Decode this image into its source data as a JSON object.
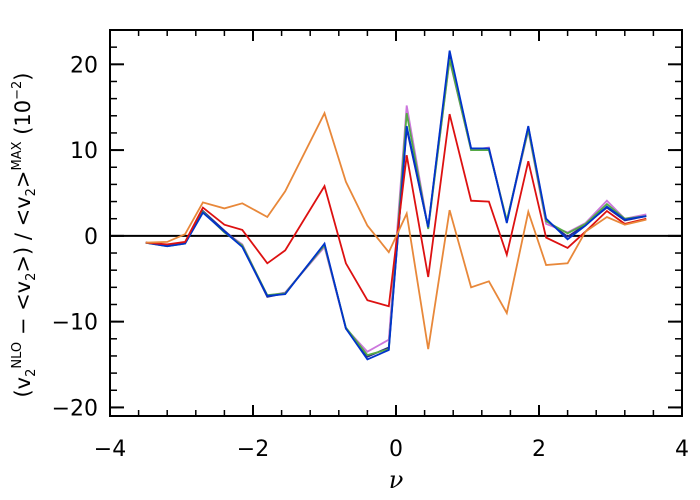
{
  "chart_data": {
    "type": "line",
    "title": "",
    "xlabel": "ν",
    "ylabel_parts": {
      "open": "(v",
      "sub1": "2",
      "sup1": "NLO",
      "middle": " − <v",
      "sub2": "2",
      "middle2": ">) / <v",
      "sub3": "2",
      "close": ">",
      "sup2": "MAX",
      "unit": " (10",
      "unit_exp": "−2",
      "unit_close": ")"
    },
    "xlim": [
      -4,
      4
    ],
    "ylim": [
      -21,
      24
    ],
    "xticks": [
      -4,
      -2,
      0,
      2,
      4
    ],
    "xtick_labels": [
      "−4",
      "−2",
      "0",
      "2",
      "4"
    ],
    "yticks": [
      -20,
      -10,
      0,
      10,
      20
    ],
    "ytick_labels": [
      "−20",
      "−10",
      "0",
      "10",
      "20"
    ],
    "x_minor_step": 0.4,
    "y_minor_step": 2,
    "zero_line": true,
    "x": [
      -3.5,
      -3.2,
      -2.95,
      -2.7,
      -2.4,
      -2.15,
      -1.8,
      -1.55,
      -1.0,
      -0.7,
      -0.4,
      -0.1,
      0.15,
      0.45,
      0.75,
      1.05,
      1.3,
      1.55,
      1.85,
      2.1,
      2.4,
      2.65,
      2.95,
      3.2,
      3.5
    ],
    "series": [
      {
        "color": "#cc77dd",
        "values": [
          -0.8,
          -1.1,
          -0.8,
          2.9,
          0.5,
          -1.0,
          -7.0,
          -6.6,
          -1.3,
          -10.8,
          -13.5,
          -12.1,
          15.2,
          0.9,
          20.5,
          10.0,
          10.3,
          1.6,
          12.3,
          1.4,
          0.4,
          1.5,
          4.1,
          2.0,
          2.5
        ]
      },
      {
        "color": "#2a2a8c",
        "values": [
          -0.8,
          -1.1,
          -0.8,
          2.9,
          0.6,
          -1.2,
          -7.1,
          -6.7,
          -1.0,
          -10.8,
          -14.1,
          -13.0,
          12.5,
          1.0,
          21.2,
          10.2,
          10.2,
          1.7,
          12.7,
          1.8,
          -0.1,
          1.3,
          3.3,
          1.8,
          2.3
        ]
      },
      {
        "color": "#55aa44",
        "values": [
          -0.8,
          -1.2,
          -0.9,
          2.8,
          0.4,
          -1.1,
          -6.9,
          -6.7,
          -1.1,
          -10.7,
          -13.9,
          -13.2,
          14.3,
          0.8,
          20.6,
          10.0,
          10.0,
          1.8,
          12.4,
          1.7,
          0.3,
          1.4,
          3.7,
          2.0,
          2.3
        ]
      },
      {
        "color": "#0033cc",
        "values": [
          -0.8,
          -1.2,
          -0.9,
          2.7,
          0.5,
          -1.3,
          -7.0,
          -6.8,
          -0.9,
          -10.8,
          -14.4,
          -13.3,
          12.8,
          1.0,
          21.6,
          10.2,
          10.2,
          1.5,
          12.8,
          2.0,
          -0.4,
          1.2,
          3.4,
          1.9,
          2.3
        ]
      },
      {
        "color": "#dd1111",
        "values": [
          -0.8,
          -1.0,
          -0.7,
          3.3,
          1.3,
          0.7,
          -3.2,
          -1.7,
          5.8,
          -3.2,
          -7.5,
          -8.2,
          9.4,
          -4.8,
          14.2,
          4.1,
          4.0,
          -2.2,
          8.7,
          -0.2,
          -1.4,
          0.5,
          2.9,
          1.4,
          2.0
        ]
      },
      {
        "color": "#e8883a",
        "values": [
          -0.8,
          -0.7,
          0.2,
          3.9,
          3.2,
          3.8,
          2.2,
          5.2,
          14.3,
          6.3,
          1.2,
          -1.9,
          2.6,
          -13.2,
          3.0,
          -6.0,
          -5.3,
          -9.0,
          2.8,
          -3.4,
          -3.2,
          0.5,
          2.2,
          1.3,
          1.9
        ]
      }
    ]
  }
}
